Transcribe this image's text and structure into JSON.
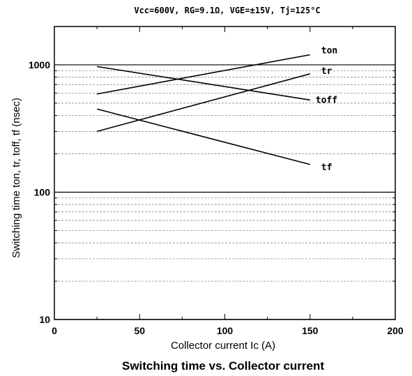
{
  "chart_data": {
    "type": "line",
    "conditions": "Vcc=600V, RG=9.1Ω, VGE=±15V, Tj=125°C",
    "title": "Switching time vs. Collector current",
    "xlabel": "Collector current    Ic (A)",
    "ylabel": "Switching time    ton, tr, toff, tf (nsec)",
    "xlim": [
      0,
      200
    ],
    "ylim": [
      10,
      2000
    ],
    "yscale": "log",
    "grid": "horizontal dashed at log minor ticks",
    "x_ticks": [
      "0",
      "50",
      "100",
      "150",
      "200"
    ],
    "y_ticks": [
      "10",
      "100",
      "1000"
    ],
    "series": [
      {
        "name": "ton",
        "x": [
          25,
          150
        ],
        "y": [
          590,
          1200
        ]
      },
      {
        "name": "tr",
        "x": [
          25,
          150
        ],
        "y": [
          300,
          850
        ]
      },
      {
        "name": "toff",
        "x": [
          25,
          150
        ],
        "y": [
          970,
          530
        ]
      },
      {
        "name": "tf",
        "x": [
          25,
          150
        ],
        "y": [
          450,
          165
        ]
      }
    ]
  }
}
